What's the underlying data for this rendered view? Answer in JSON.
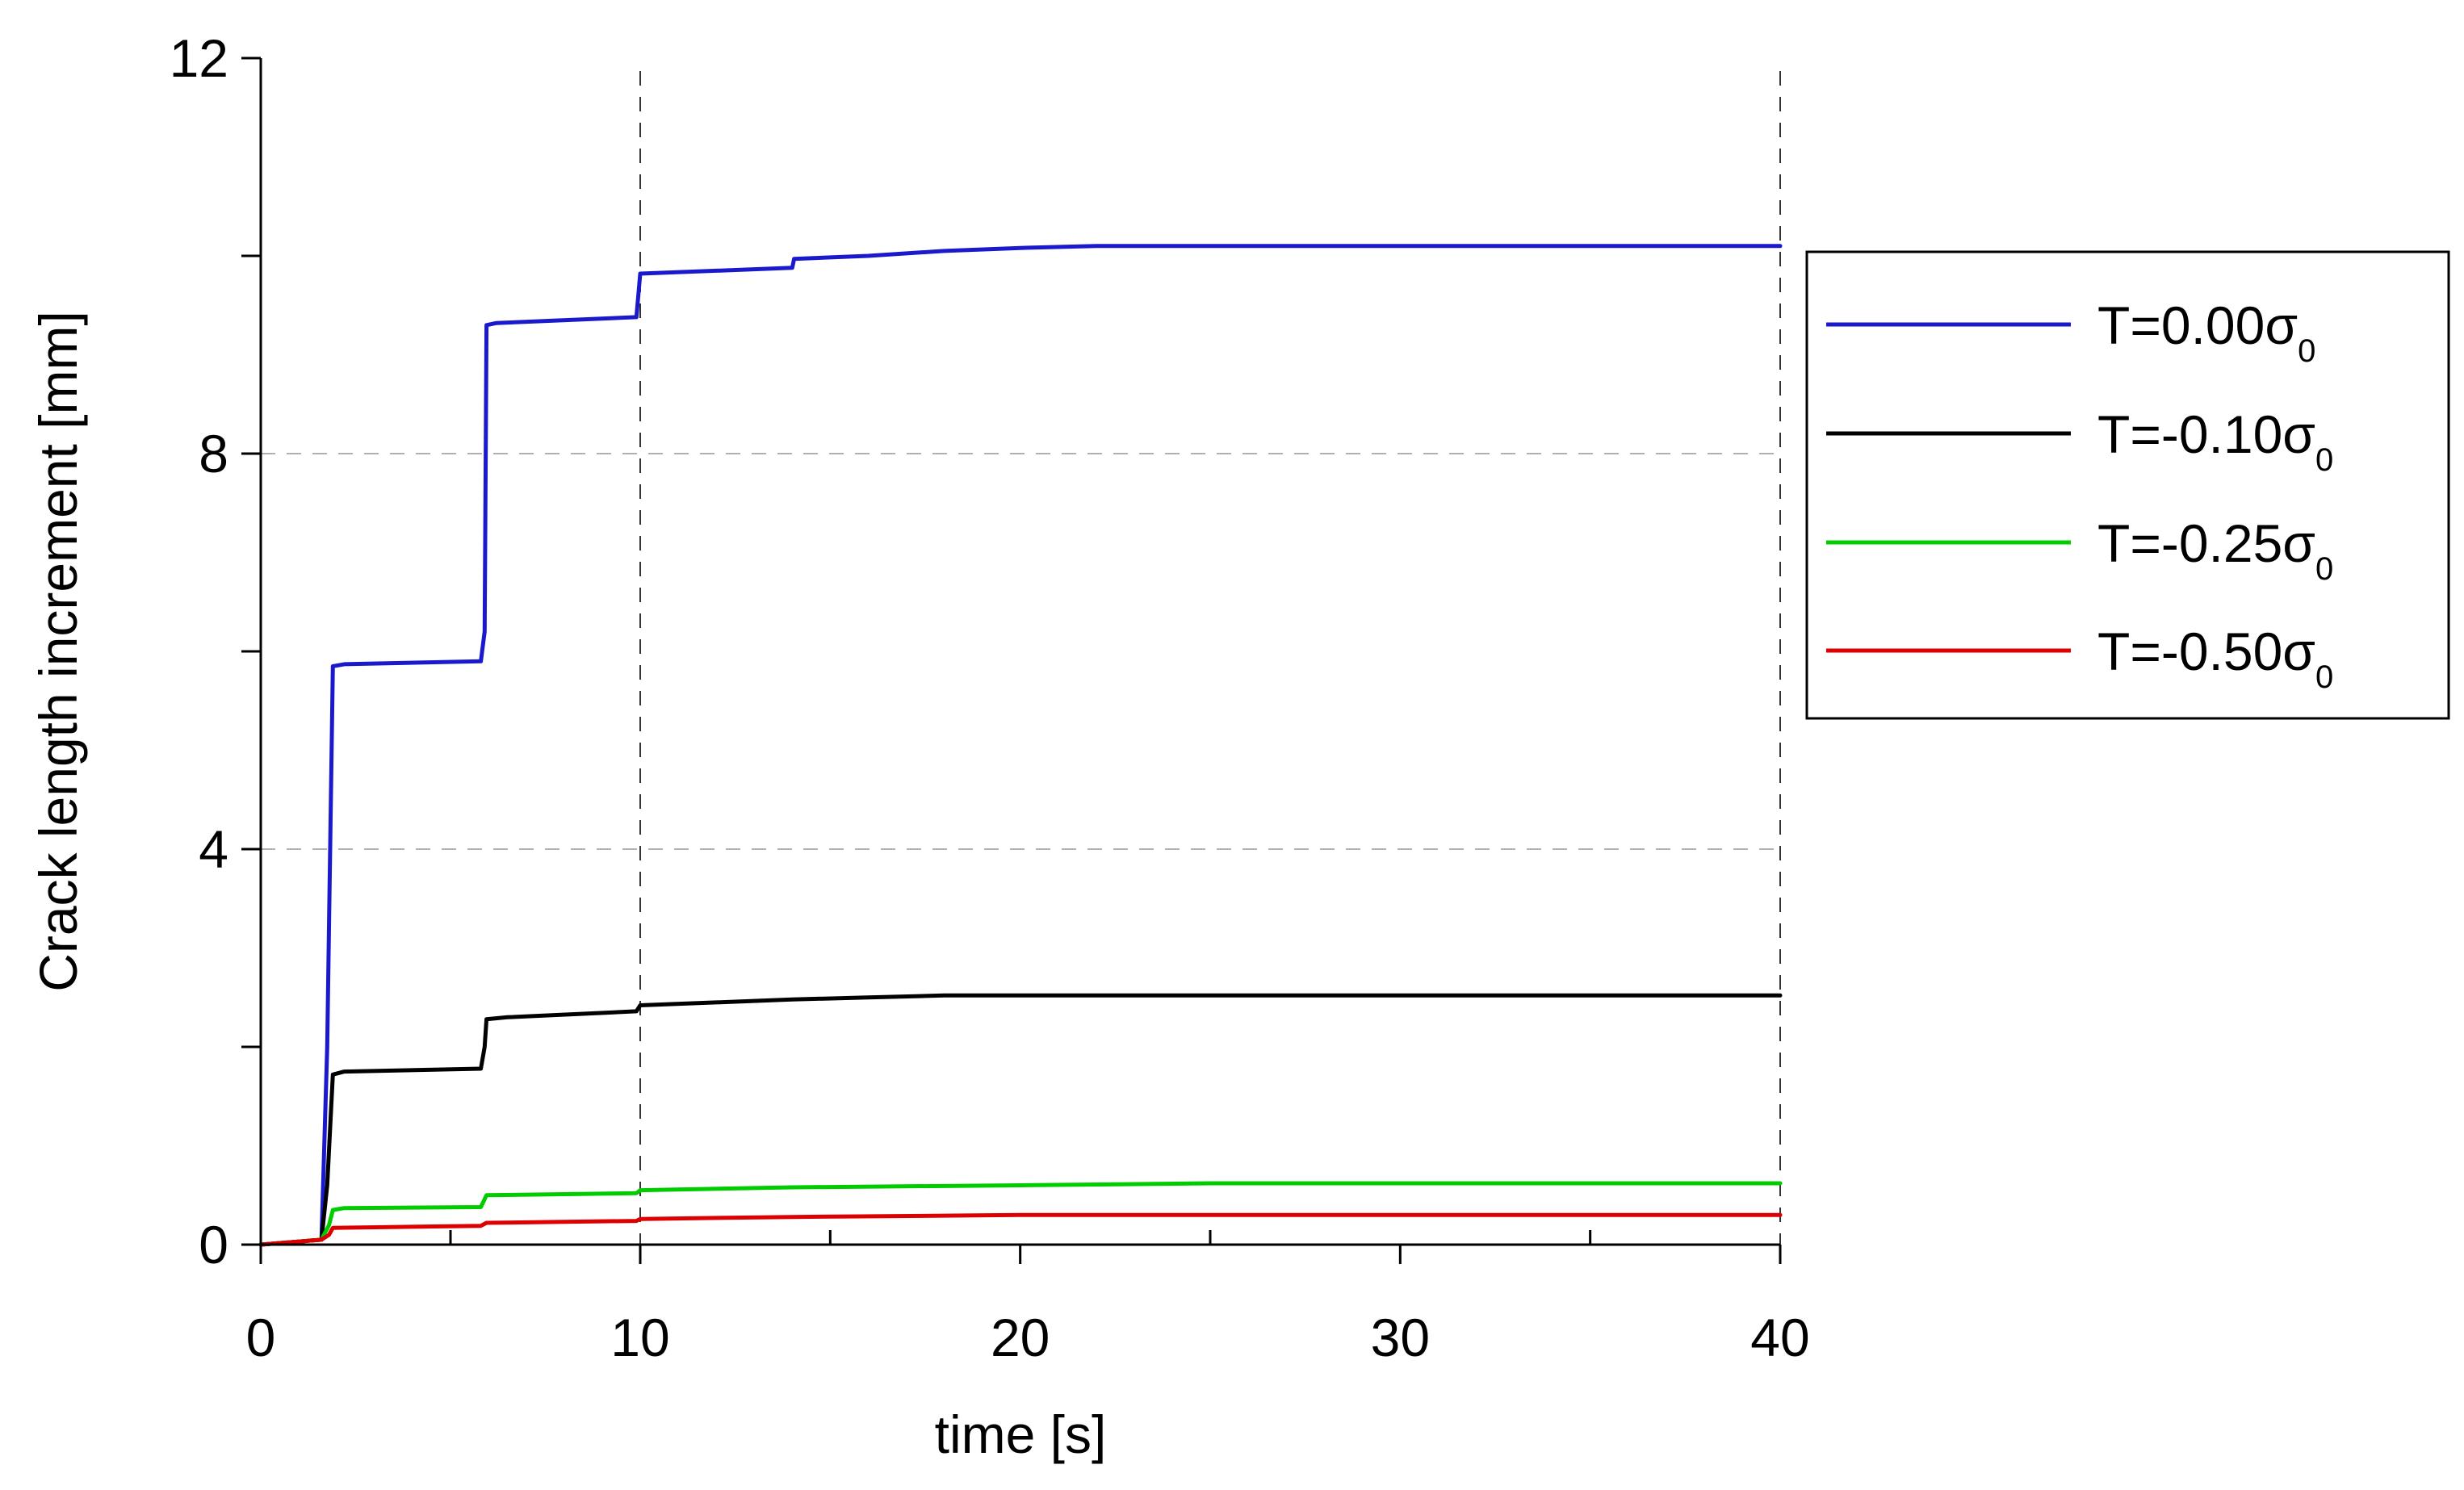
{
  "chart_data": {
    "type": "line",
    "xlabel": "time [s]",
    "ylabel": "Crack length increment [mm]",
    "x_axis": {
      "note": "broken axis: 0–10 s occupies one half, 10–40 s the other half",
      "ticks": [
        0,
        10,
        20,
        30,
        40
      ],
      "tick_labels": [
        "0",
        "10",
        "20",
        "30",
        "40"
      ],
      "minor_ticks": [
        5,
        15,
        25,
        35
      ],
      "xlim": [
        0,
        40
      ]
    },
    "y_axis": {
      "ticks": [
        0,
        2,
        4,
        6,
        8,
        10,
        12
      ],
      "tick_labels": [
        "0",
        "",
        "4",
        "",
        "8",
        "",
        "12"
      ],
      "ylim": [
        0,
        12
      ]
    },
    "grid": {
      "horizontal_dashed_at": [
        4,
        8
      ],
      "vertical_dashed_at": [
        10,
        40
      ]
    },
    "legend_position": "right",
    "series": [
      {
        "name": "T=0.00σ0",
        "legend_main": "T=0.00σ",
        "legend_sub": "0",
        "color": "#1a1acc",
        "points": [
          [
            0,
            0
          ],
          [
            1.6,
            0.05
          ],
          [
            1.75,
            2.0
          ],
          [
            1.9,
            5.85
          ],
          [
            2.2,
            5.87
          ],
          [
            5.8,
            5.9
          ],
          [
            5.9,
            6.2
          ],
          [
            5.95,
            9.3
          ],
          [
            6.2,
            9.32
          ],
          [
            9.9,
            9.38
          ],
          [
            10,
            9.82
          ],
          [
            12,
            9.85
          ],
          [
            14,
            9.88
          ],
          [
            14.05,
            9.97
          ],
          [
            16,
            10.0
          ],
          [
            18,
            10.05
          ],
          [
            20,
            10.08
          ],
          [
            22,
            10.1
          ],
          [
            40,
            10.1
          ]
        ]
      },
      {
        "name": "T=-0.10σ0",
        "legend_main": "T=-0.10σ",
        "legend_sub": "0",
        "color": "#000000",
        "points": [
          [
            0,
            0
          ],
          [
            1.6,
            0.05
          ],
          [
            1.75,
            0.6
          ],
          [
            1.9,
            1.72
          ],
          [
            2.2,
            1.75
          ],
          [
            5.8,
            1.78
          ],
          [
            5.9,
            2.0
          ],
          [
            5.95,
            2.28
          ],
          [
            6.5,
            2.3
          ],
          [
            9.9,
            2.36
          ],
          [
            10,
            2.42
          ],
          [
            12,
            2.45
          ],
          [
            14,
            2.48
          ],
          [
            16,
            2.5
          ],
          [
            18,
            2.52
          ],
          [
            20,
            2.52
          ],
          [
            40,
            2.52
          ]
        ]
      },
      {
        "name": "T=-0.25σ0",
        "legend_main": "T=-0.25σ",
        "legend_sub": "0",
        "color": "#00cc00",
        "points": [
          [
            0,
            0
          ],
          [
            1.6,
            0.05
          ],
          [
            1.8,
            0.2
          ],
          [
            1.9,
            0.35
          ],
          [
            2.2,
            0.37
          ],
          [
            5.8,
            0.38
          ],
          [
            5.95,
            0.5
          ],
          [
            9.9,
            0.52
          ],
          [
            10,
            0.55
          ],
          [
            14,
            0.58
          ],
          [
            20,
            0.6
          ],
          [
            25,
            0.62
          ],
          [
            40,
            0.62
          ]
        ]
      },
      {
        "name": "T=-0.50σ0",
        "legend_main": "T=-0.50σ",
        "legend_sub": "0",
        "color": "#dd0000",
        "points": [
          [
            0,
            0
          ],
          [
            1.6,
            0.05
          ],
          [
            1.8,
            0.1
          ],
          [
            1.9,
            0.17
          ],
          [
            5.8,
            0.19
          ],
          [
            5.95,
            0.22
          ],
          [
            9.9,
            0.24
          ],
          [
            10,
            0.26
          ],
          [
            14,
            0.28
          ],
          [
            20,
            0.3
          ],
          [
            40,
            0.3
          ]
        ]
      }
    ]
  }
}
